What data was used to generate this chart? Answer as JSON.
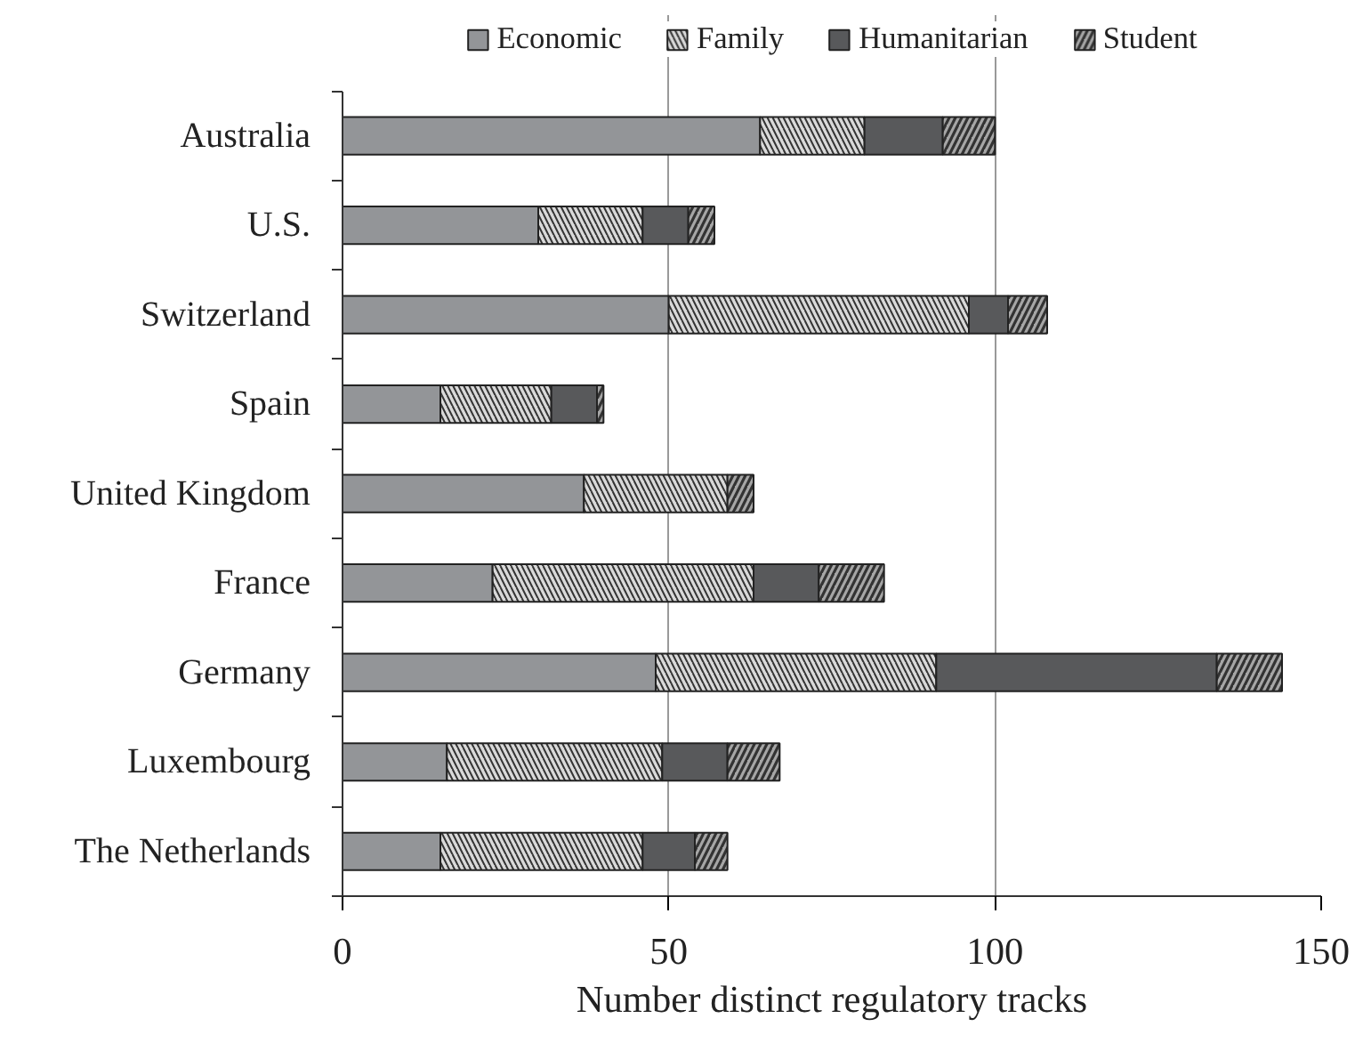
{
  "chart_data": {
    "type": "bar",
    "orientation": "horizontal",
    "stacked": true,
    "xlabel": "Number distinct regulatory tracks",
    "categories": [
      "Australia",
      "U.S.",
      "Switzerland",
      "Spain",
      "United Kingdom",
      "France",
      "Germany",
      "Luxembourg",
      "The Netherlands"
    ],
    "series": [
      {
        "name": "Economic",
        "color": "#939598",
        "values": [
          64,
          30,
          50,
          15,
          37,
          23,
          48,
          16,
          15
        ]
      },
      {
        "name": "Family",
        "color": "#d9d9d9",
        "values": [
          16,
          16,
          46,
          17,
          22,
          40,
          43,
          33,
          31
        ]
      },
      {
        "name": "Humanitarian",
        "color": "#58595b",
        "values": [
          12,
          7,
          6,
          7,
          null,
          10,
          43,
          10,
          8
        ]
      },
      {
        "name": "Student",
        "color": "#a6a6a6",
        "values": [
          8,
          4,
          6,
          1,
          4,
          10,
          10,
          8,
          5
        ]
      }
    ],
    "xlim": [
      0,
      150
    ],
    "xticks": [
      0,
      50,
      100,
      150
    ],
    "grid": "x",
    "legend": "top"
  }
}
